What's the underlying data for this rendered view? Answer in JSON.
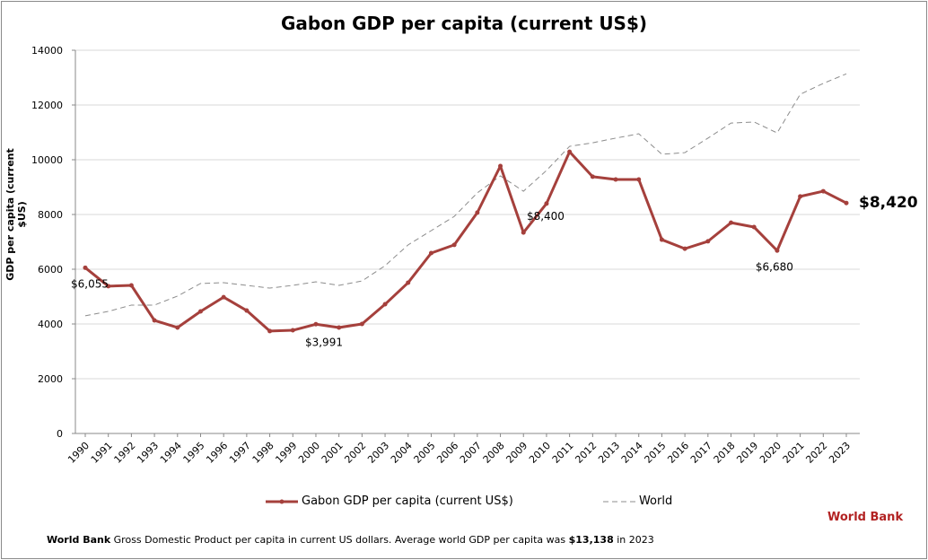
{
  "chart_data": {
    "type": "line",
    "title": "Gabon GDP per capita (current US$)",
    "xlabel": "",
    "ylabel": "GDP per capita (current $US)",
    "ylim": [
      0,
      14000
    ],
    "yticks": [
      "0",
      "2000",
      "4000",
      "6000",
      "8000",
      "10000",
      "12000",
      "14000"
    ],
    "grid": true,
    "legend_position": "bottom",
    "categories": [
      "1990",
      "1991",
      "1992",
      "1993",
      "1994",
      "1995",
      "1996",
      "1997",
      "1998",
      "1999",
      "2000",
      "2001",
      "2002",
      "2003",
      "2004",
      "2005",
      "2006",
      "2007",
      "2008",
      "2009",
      "2010",
      "2011",
      "2012",
      "2013",
      "2014",
      "2015",
      "2016",
      "2017",
      "2018",
      "2019",
      "2020",
      "2021",
      "2022",
      "2023"
    ],
    "series": [
      {
        "name": "Gabon GDP per capita (current US$)",
        "color": "#a5403c",
        "style": "solid-markers",
        "values": [
          6055,
          5380,
          5410,
          4130,
          3870,
          4460,
          4980,
          4490,
          3740,
          3770,
          3991,
          3870,
          4000,
          4720,
          5510,
          6590,
          6890,
          8070,
          9770,
          7340,
          8400,
          10290,
          9380,
          9280,
          9280,
          7080,
          6750,
          7020,
          7700,
          7540,
          6680,
          8660,
          8850,
          8420
        ]
      },
      {
        "name": "World",
        "color": "#8c8c8c",
        "style": "dashed",
        "values": [
          4300,
          4460,
          4690,
          4690,
          5020,
          5480,
          5510,
          5410,
          5310,
          5410,
          5540,
          5410,
          5570,
          6130,
          6890,
          7410,
          7930,
          8790,
          9410,
          8850,
          9610,
          10490,
          10620,
          10790,
          10950,
          10200,
          10260,
          10790,
          11340,
          11380,
          10980,
          12390,
          12790,
          13138
        ]
      }
    ],
    "annotations": [
      {
        "year": "1990",
        "text": "$6,055"
      },
      {
        "year": "2000",
        "text": "$3,991"
      },
      {
        "year": "2010",
        "text": "$8,400"
      },
      {
        "year": "2020",
        "text": "$6,680"
      },
      {
        "year": "2023",
        "text": "$8,420",
        "bold": true
      }
    ]
  },
  "footer": {
    "source_bold": "World Bank",
    "text": " Gross Domestic Product per capita in current US dollars.  Average world GDP per capita was ",
    "value_bold": "$13,138",
    "suffix": " in 2023"
  },
  "brand": "World Bank"
}
